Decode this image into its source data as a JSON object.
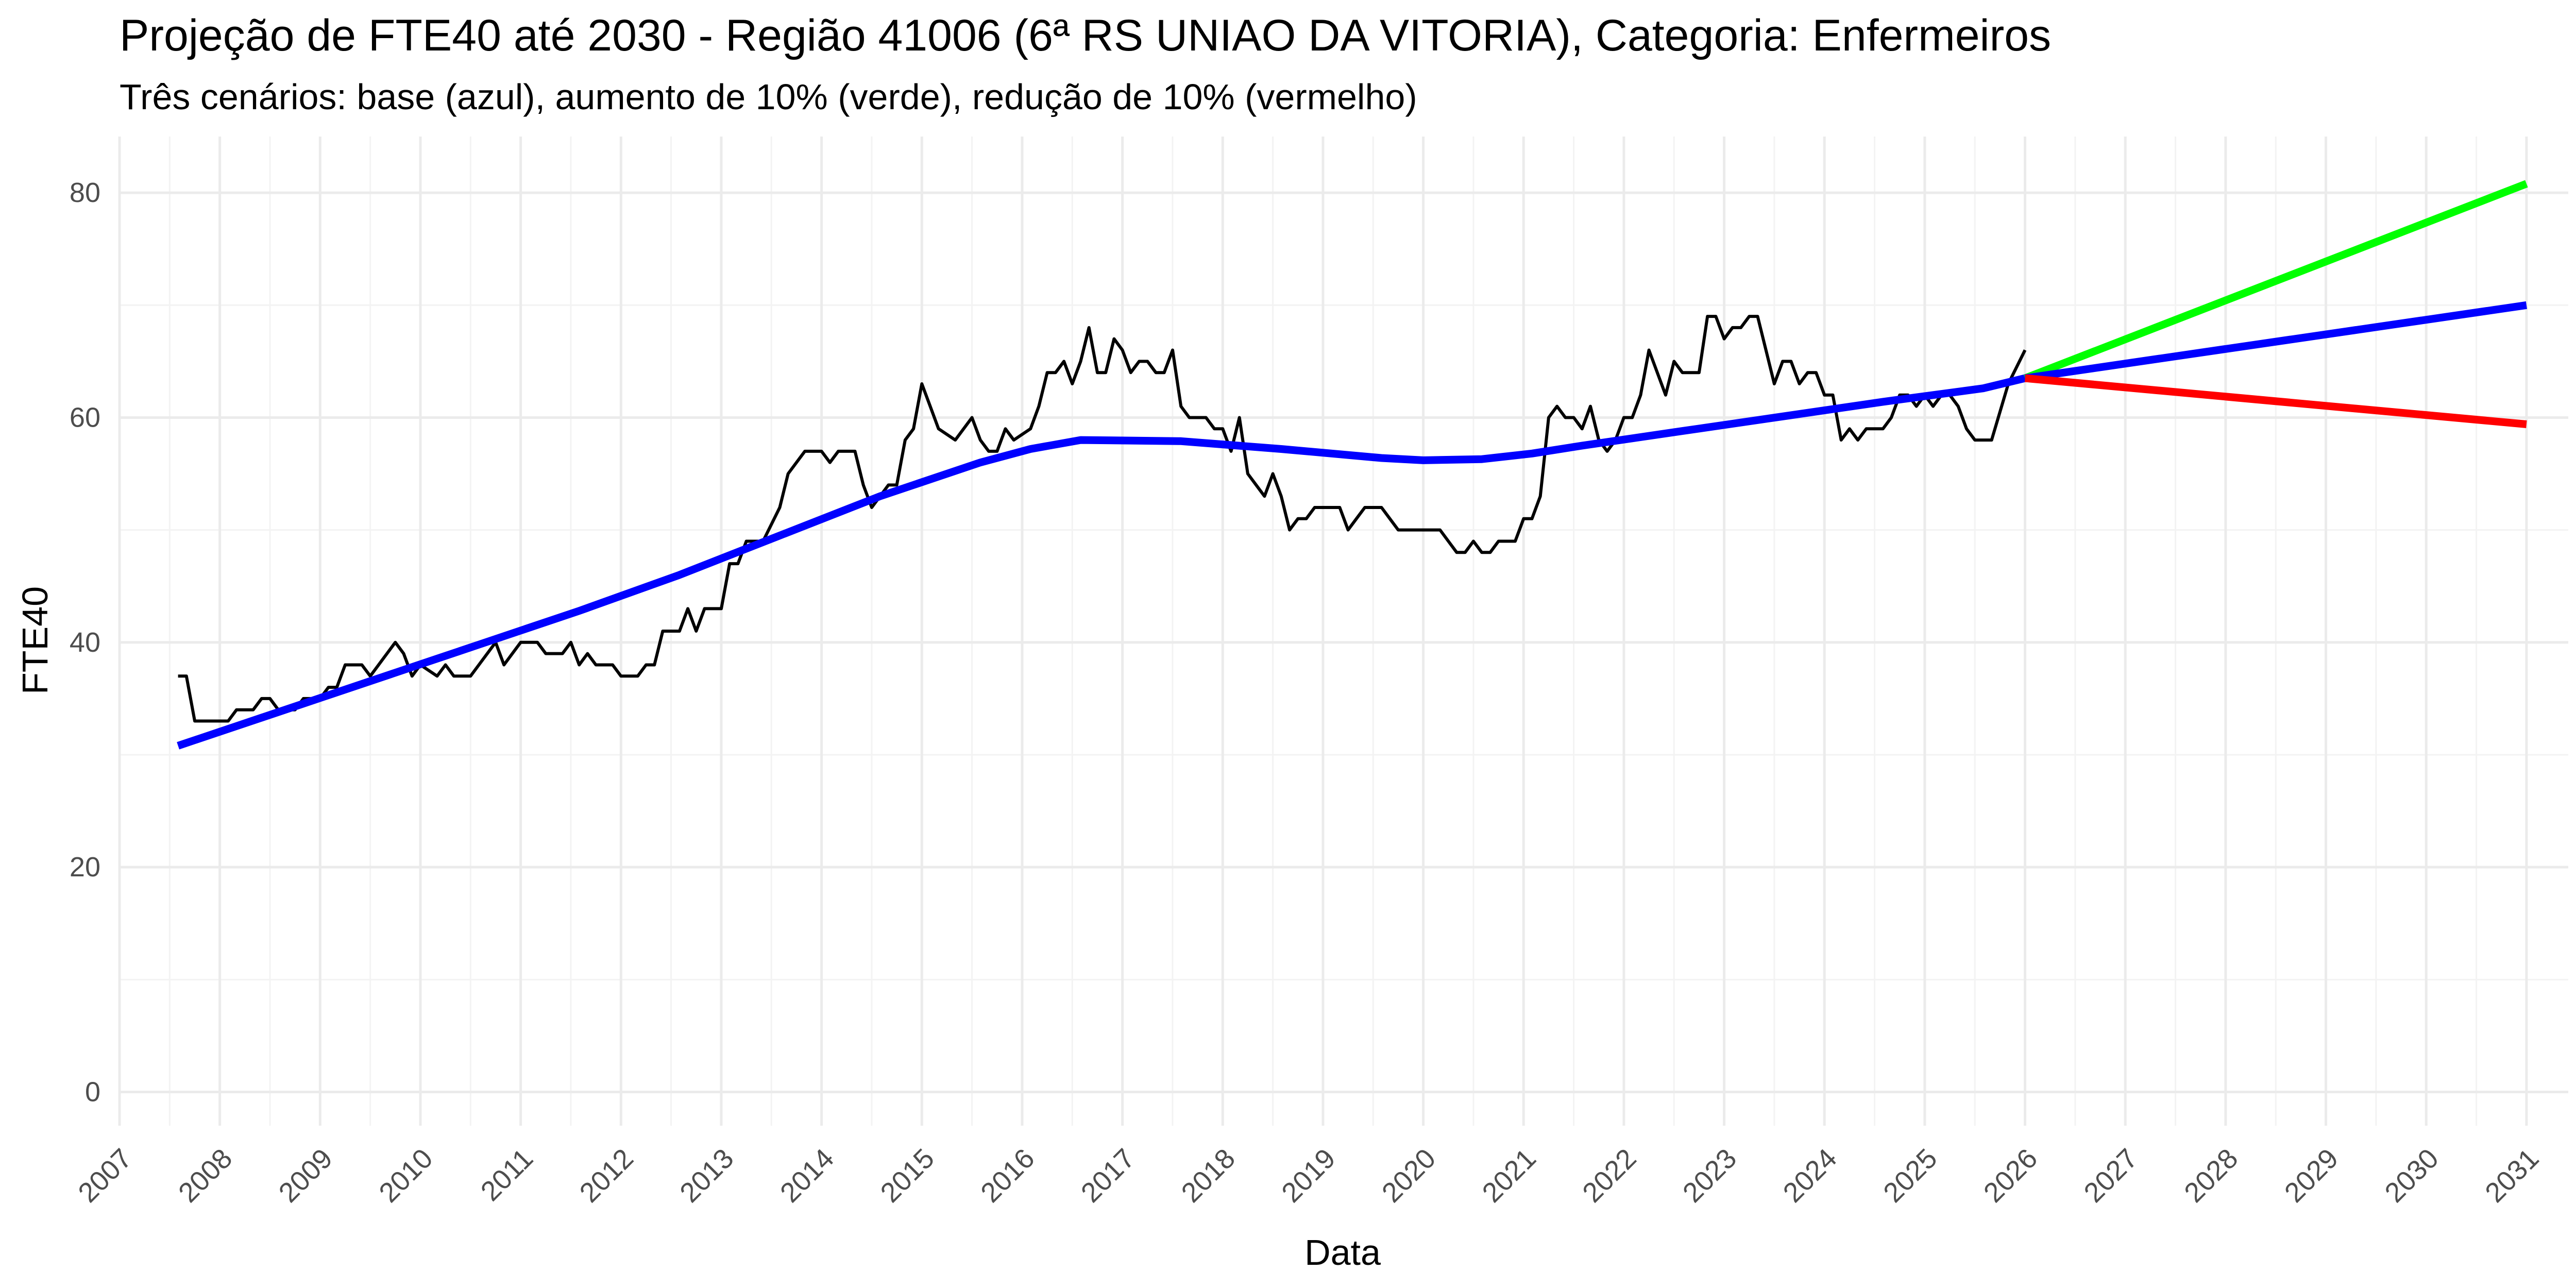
{
  "chart_data": {
    "type": "line",
    "title": "Projeção de FTE40 até 2030 - Região 41006 (6ª RS UNIAO DA VITORIA), Categoria: Enfermeiros",
    "subtitle": "Três cenários: base (azul), aumento de 10% (verde), redução de 10% (vermelho)",
    "xlabel": "Data",
    "ylabel": "FTE40",
    "xlim": [
      "2007-01",
      "2031-06"
    ],
    "ylim": [
      -3,
      85
    ],
    "x_ticks": [
      "2007",
      "2008",
      "2009",
      "2010",
      "2011",
      "2012",
      "2013",
      "2014",
      "2015",
      "2016",
      "2017",
      "2018",
      "2019",
      "2020",
      "2021",
      "2022",
      "2023",
      "2024",
      "2025",
      "2026",
      "2027",
      "2028",
      "2029",
      "2030",
      "2031"
    ],
    "y_ticks": [
      0,
      20,
      40,
      60,
      80
    ],
    "grid": true,
    "legend": "none",
    "series": [
      {
        "color": "#000000",
        "points": [
          [
            "2007-08",
            37
          ],
          [
            "2007-09",
            37
          ],
          [
            "2007-10",
            33
          ],
          [
            "2007-12",
            33
          ],
          [
            "2008-02",
            33
          ],
          [
            "2008-03",
            34
          ],
          [
            "2008-05",
            34
          ],
          [
            "2008-06",
            35
          ],
          [
            "2008-07",
            35
          ],
          [
            "2008-08",
            34
          ],
          [
            "2008-10",
            34
          ],
          [
            "2008-11",
            35
          ],
          [
            "2009-01",
            35
          ],
          [
            "2009-02",
            36
          ],
          [
            "2009-03",
            36
          ],
          [
            "2009-04",
            38
          ],
          [
            "2009-06",
            38
          ],
          [
            "2009-07",
            37
          ],
          [
            "2009-09",
            39
          ],
          [
            "2009-10",
            40
          ],
          [
            "2009-11",
            39
          ],
          [
            "2009-12",
            37
          ],
          [
            "2010-01",
            38
          ],
          [
            "2010-03",
            37
          ],
          [
            "2010-04",
            38
          ],
          [
            "2010-05",
            37
          ],
          [
            "2010-07",
            37
          ],
          [
            "2010-08",
            38
          ],
          [
            "2010-10",
            40
          ],
          [
            "2010-11",
            38
          ],
          [
            "2011-01",
            40
          ],
          [
            "2011-03",
            40
          ],
          [
            "2011-04",
            39
          ],
          [
            "2011-06",
            39
          ],
          [
            "2011-07",
            40
          ],
          [
            "2011-08",
            38
          ],
          [
            "2011-09",
            39
          ],
          [
            "2011-10",
            38
          ],
          [
            "2011-12",
            38
          ],
          [
            "2012-01",
            37
          ],
          [
            "2012-03",
            37
          ],
          [
            "2012-04",
            38
          ],
          [
            "2012-05",
            38
          ],
          [
            "2012-06",
            41
          ],
          [
            "2012-08",
            41
          ],
          [
            "2012-09",
            43
          ],
          [
            "2012-10",
            41
          ],
          [
            "2012-11",
            43
          ],
          [
            "2013-01",
            43
          ],
          [
            "2013-02",
            47
          ],
          [
            "2013-03",
            47
          ],
          [
            "2013-04",
            49
          ],
          [
            "2013-06",
            49
          ],
          [
            "2013-08",
            52
          ],
          [
            "2013-09",
            55
          ],
          [
            "2013-11",
            57
          ],
          [
            "2014-01",
            57
          ],
          [
            "2014-02",
            56
          ],
          [
            "2014-03",
            57
          ],
          [
            "2014-05",
            57
          ],
          [
            "2014-06",
            54
          ],
          [
            "2014-07",
            52
          ],
          [
            "2014-09",
            54
          ],
          [
            "2014-10",
            54
          ],
          [
            "2014-11",
            58
          ],
          [
            "2014-12",
            59
          ],
          [
            "2015-01",
            63
          ],
          [
            "2015-02",
            61
          ],
          [
            "2015-03",
            59
          ],
          [
            "2015-05",
            58
          ],
          [
            "2015-07",
            60
          ],
          [
            "2015-08",
            58
          ],
          [
            "2015-09",
            57
          ],
          [
            "2015-10",
            57
          ],
          [
            "2015-11",
            59
          ],
          [
            "2015-12",
            58
          ],
          [
            "2016-02",
            59
          ],
          [
            "2016-03",
            61
          ],
          [
            "2016-04",
            64
          ],
          [
            "2016-05",
            64
          ],
          [
            "2016-06",
            65
          ],
          [
            "2016-07",
            63
          ],
          [
            "2016-08",
            65
          ],
          [
            "2016-09",
            68
          ],
          [
            "2016-10",
            64
          ],
          [
            "2016-11",
            64
          ],
          [
            "2016-12",
            67
          ],
          [
            "2017-01",
            66
          ],
          [
            "2017-02",
            64
          ],
          [
            "2017-03",
            65
          ],
          [
            "2017-04",
            65
          ],
          [
            "2017-05",
            64
          ],
          [
            "2017-06",
            64
          ],
          [
            "2017-07",
            66
          ],
          [
            "2017-08",
            61
          ],
          [
            "2017-09",
            60
          ],
          [
            "2017-11",
            60
          ],
          [
            "2017-12",
            59
          ],
          [
            "2018-01",
            59
          ],
          [
            "2018-02",
            57
          ],
          [
            "2018-03",
            60
          ],
          [
            "2018-04",
            55
          ],
          [
            "2018-05",
            54
          ],
          [
            "2018-06",
            53
          ],
          [
            "2018-07",
            55
          ],
          [
            "2018-08",
            53
          ],
          [
            "2018-09",
            50
          ],
          [
            "2018-10",
            51
          ],
          [
            "2018-11",
            51
          ],
          [
            "2018-12",
            52
          ],
          [
            "2019-03",
            52
          ],
          [
            "2019-04",
            50
          ],
          [
            "2019-05",
            51
          ],
          [
            "2019-06",
            52
          ],
          [
            "2019-08",
            52
          ],
          [
            "2019-09",
            51
          ],
          [
            "2019-10",
            50
          ],
          [
            "2019-12",
            50
          ],
          [
            "2020-03",
            50
          ],
          [
            "2020-04",
            49
          ],
          [
            "2020-05",
            48
          ],
          [
            "2020-06",
            48
          ],
          [
            "2020-07",
            49
          ],
          [
            "2020-08",
            48
          ],
          [
            "2020-09",
            48
          ],
          [
            "2020-10",
            49
          ],
          [
            "2020-12",
            49
          ],
          [
            "2021-01",
            51
          ],
          [
            "2021-02",
            51
          ],
          [
            "2021-03",
            53
          ],
          [
            "2021-04",
            60
          ],
          [
            "2021-05",
            61
          ],
          [
            "2021-06",
            60
          ],
          [
            "2021-07",
            60
          ],
          [
            "2021-08",
            59
          ],
          [
            "2021-09",
            61
          ],
          [
            "2021-10",
            58
          ],
          [
            "2021-11",
            57
          ],
          [
            "2021-12",
            58
          ],
          [
            "2022-01",
            60
          ],
          [
            "2022-02",
            60
          ],
          [
            "2022-03",
            62
          ],
          [
            "2022-04",
            66
          ],
          [
            "2022-05",
            64
          ],
          [
            "2022-06",
            62
          ],
          [
            "2022-07",
            65
          ],
          [
            "2022-08",
            64
          ],
          [
            "2022-10",
            64
          ],
          [
            "2022-11",
            69
          ],
          [
            "2022-12",
            69
          ],
          [
            "2023-01",
            67
          ],
          [
            "2023-02",
            68
          ],
          [
            "2023-03",
            68
          ],
          [
            "2023-04",
            69
          ],
          [
            "2023-05",
            69
          ],
          [
            "2023-06",
            66
          ],
          [
            "2023-07",
            63
          ],
          [
            "2023-08",
            65
          ],
          [
            "2023-09",
            65
          ],
          [
            "2023-10",
            63
          ],
          [
            "2023-11",
            64
          ],
          [
            "2023-12",
            64
          ],
          [
            "2024-01",
            62
          ],
          [
            "2024-02",
            62
          ],
          [
            "2024-03",
            58
          ],
          [
            "2024-04",
            59
          ],
          [
            "2024-05",
            58
          ],
          [
            "2024-06",
            59
          ],
          [
            "2024-08",
            59
          ],
          [
            "2024-09",
            60
          ],
          [
            "2024-10",
            62
          ],
          [
            "2024-11",
            62
          ],
          [
            "2024-12",
            61
          ],
          [
            "2025-01",
            62
          ],
          [
            "2025-02",
            61
          ],
          [
            "2025-03",
            62
          ],
          [
            "2025-04",
            62
          ],
          [
            "2025-05",
            61
          ],
          [
            "2025-06",
            59
          ],
          [
            "2025-07",
            58
          ],
          [
            "2025-09",
            58
          ],
          [
            "2025-11",
            63
          ],
          [
            "2026-01",
            66
          ]
        ]
      },
      {
        "color": "#0000ff",
        "points": [
          [
            "2007-08",
            30.8
          ],
          [
            "2008-08",
            33.8
          ],
          [
            "2009-08",
            36.8
          ],
          [
            "2010-08",
            39.8
          ],
          [
            "2011-08",
            42.8
          ],
          [
            "2012-08",
            46.0
          ],
          [
            "2013-08",
            49.5
          ],
          [
            "2014-08",
            53.0
          ],
          [
            "2015-08",
            56.0
          ],
          [
            "2016-02",
            57.2
          ],
          [
            "2016-08",
            58.0
          ],
          [
            "2017-08",
            57.9
          ],
          [
            "2018-08",
            57.2
          ],
          [
            "2019-08",
            56.4
          ],
          [
            "2020-01",
            56.2
          ],
          [
            "2020-08",
            56.3
          ],
          [
            "2021-02",
            56.8
          ],
          [
            "2021-08",
            57.5
          ],
          [
            "2022-08",
            58.8
          ],
          [
            "2023-08",
            60.1
          ],
          [
            "2024-08",
            61.4
          ],
          [
            "2025-08",
            62.6
          ],
          [
            "2026-01",
            63.5
          ]
        ]
      },
      {
        "color": "#00ff00",
        "points": [
          [
            "2026-01",
            63.5
          ],
          [
            "2031-01",
            80.8
          ]
        ]
      },
      {
        "color": "#0000ff",
        "points": [
          [
            "2026-01",
            63.5
          ],
          [
            "2031-01",
            70.0
          ]
        ]
      },
      {
        "color": "#ff0000",
        "points": [
          [
            "2026-01",
            63.5
          ],
          [
            "2031-01",
            59.4
          ]
        ]
      }
    ]
  }
}
